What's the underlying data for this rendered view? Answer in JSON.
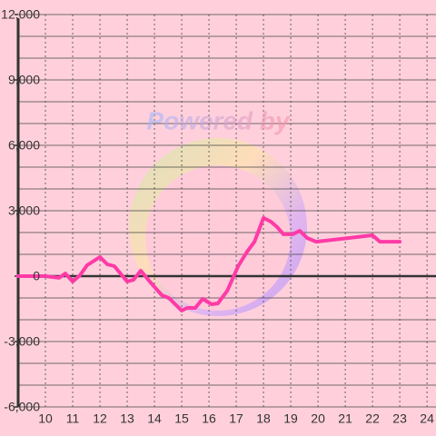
{
  "chart_data": {
    "type": "line",
    "watermark": "Powered by",
    "x": [
      9,
      10,
      10.5,
      10.73,
      11,
      11.27,
      11.53,
      12,
      12.27,
      12.53,
      13,
      13.23,
      13.5,
      13.83,
      14.27,
      14.53,
      14.73,
      15,
      15.2,
      15.5,
      15.77,
      16.1,
      16.33,
      16.67,
      17.07,
      17.4,
      17.67,
      18,
      18.27,
      18.5,
      18.73,
      19.07,
      19.33,
      19.6,
      19.93,
      22,
      22.27,
      23
    ],
    "series": [
      {
        "color": "#ff3aa6",
        "values": [
          0,
          0,
          -80,
          120,
          -250,
          40,
          500,
          880,
          540,
          460,
          -250,
          -170,
          250,
          -250,
          -875,
          -1000,
          -1250,
          -1580,
          -1460,
          -1460,
          -1040,
          -1290,
          -1250,
          -670,
          460,
          1125,
          1580,
          2670,
          2500,
          2250,
          1920,
          1920,
          2080,
          1750,
          1580,
          1875,
          1580,
          1580
        ]
      }
    ],
    "xlim": [
      9,
      24.33
    ],
    "xticks": [
      10,
      11,
      12,
      13,
      14,
      15,
      16,
      17,
      18,
      19,
      20,
      21,
      22,
      23,
      24
    ],
    "ylim": [
      -6000,
      12000
    ],
    "yticks": [
      {
        "value": -6000,
        "label": "-6,000"
      },
      {
        "value": -3000,
        "label": "-3,000"
      },
      0,
      {
        "value": 3000,
        "label": "3,000"
      },
      {
        "value": 6000,
        "label": "6,000"
      },
      {
        "value": 9000,
        "label": "9,000"
      },
      {
        "value": 12000,
        "label": "12,000"
      }
    ],
    "y_minor_ticks": [
      -5000,
      -4000,
      -2000,
      -1000,
      1000,
      2000,
      4000,
      5000,
      7000,
      8000,
      10000,
      11000
    ],
    "grid": true
  }
}
